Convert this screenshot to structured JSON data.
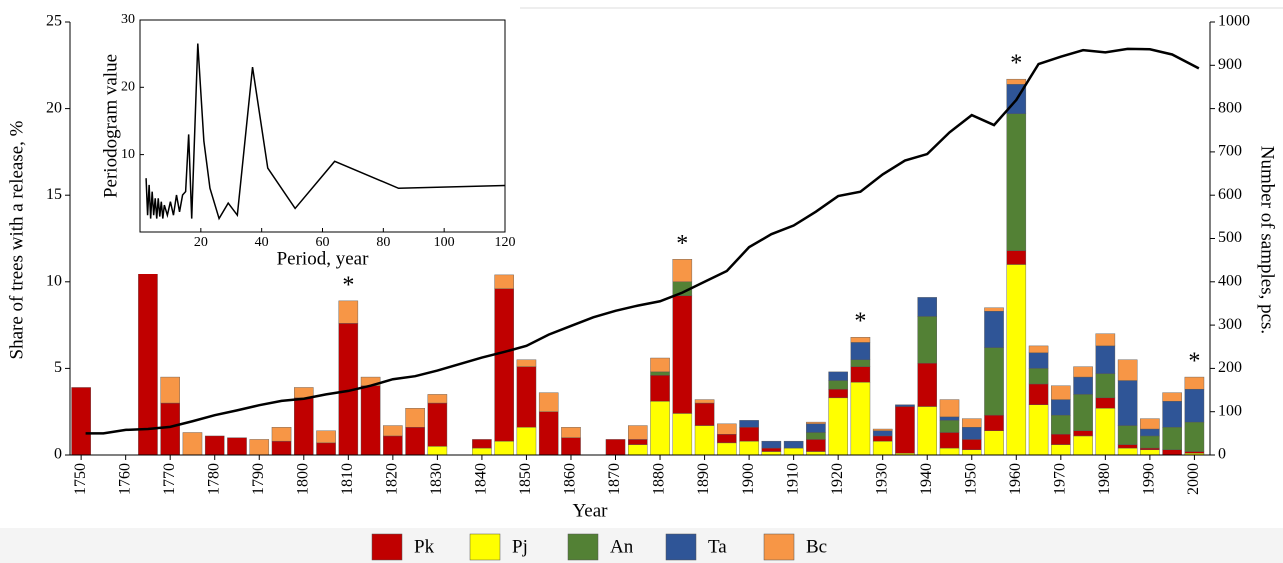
{
  "chart_data": [
    {
      "type": "bar",
      "stacked": true,
      "xlabel": "Year",
      "ylabel": "Share of trees with a release, %",
      "y2label": "Number of samples, pcs.",
      "x": [
        1750,
        1755,
        1760,
        1765,
        1770,
        1775,
        1780,
        1785,
        1790,
        1795,
        1800,
        1805,
        1810,
        1815,
        1820,
        1825,
        1830,
        1835,
        1840,
        1845,
        1850,
        1855,
        1860,
        1865,
        1870,
        1875,
        1880,
        1885,
        1890,
        1895,
        1900,
        1905,
        1910,
        1915,
        1920,
        1925,
        1930,
        1935,
        1940,
        1945,
        1950,
        1955,
        1960,
        1965,
        1970,
        1975,
        1980,
        1985,
        1990,
        1995,
        2000
      ],
      "xlim": [
        1747.5,
        2003.5
      ],
      "xticks": [
        1750,
        1760,
        1770,
        1780,
        1790,
        1800,
        1810,
        1820,
        1830,
        1840,
        1850,
        1860,
        1870,
        1880,
        1890,
        1900,
        1910,
        1920,
        1930,
        1940,
        1950,
        1960,
        1970,
        1980,
        1990,
        2000
      ],
      "ylim": [
        0,
        25
      ],
      "yticks": [
        0,
        5,
        10,
        15,
        20,
        25
      ],
      "y2lim": [
        0,
        1000
      ],
      "y2ticks": [
        0,
        100,
        200,
        300,
        400,
        500,
        600,
        700,
        800,
        900,
        1000
      ],
      "legend": "bottom",
      "series": [
        {
          "name": "Pk",
          "color": "#c00000",
          "values": [
            3.9,
            0,
            0,
            11.3,
            3.0,
            0,
            1.1,
            1.0,
            0,
            0.8,
            3.3,
            0.7,
            7.6,
            4.0,
            1.1,
            1.6,
            2.5,
            0,
            0.5,
            8.8,
            3.5,
            2.5,
            1.0,
            0,
            0.9,
            0.3,
            1.5,
            6.8,
            1.3,
            0.5,
            0.8,
            0.2,
            0,
            0.7,
            0.5,
            0.9,
            0.3,
            2.7,
            2.5,
            0.9,
            0.6,
            0.9,
            0.8,
            1.2,
            0.6,
            0.3,
            0.6,
            0.2,
            0.1,
            0.3,
            0.1
          ]
        },
        {
          "name": "Pj",
          "color": "#ffff00",
          "values": [
            0,
            0,
            0,
            0,
            0,
            0,
            0,
            0,
            0,
            0,
            0,
            0,
            0,
            0,
            0,
            0,
            0.5,
            0,
            0.4,
            0.8,
            1.6,
            0,
            0,
            0,
            0,
            0.6,
            3.1,
            2.4,
            1.7,
            0.7,
            0.8,
            0.2,
            0.4,
            0.2,
            3.3,
            4.2,
            0.8,
            0.1,
            2.8,
            0.4,
            0.3,
            1.4,
            11.0,
            2.9,
            0.6,
            1.1,
            2.7,
            0.4,
            0.3,
            0,
            0.1
          ]
        },
        {
          "name": "An",
          "color": "#538135",
          "values": [
            0,
            0,
            0,
            0,
            0,
            0,
            0,
            0,
            0,
            0,
            0,
            0,
            0,
            0,
            0,
            0,
            0,
            0,
            0,
            0,
            0,
            0,
            0,
            0,
            0,
            0,
            0.2,
            0.8,
            0,
            0,
            0,
            0,
            0,
            0.4,
            0.5,
            0.4,
            0,
            0,
            2.7,
            0.7,
            0,
            3.9,
            7.9,
            0.9,
            1.1,
            2.1,
            1.4,
            1.1,
            0.7,
            1.3,
            1.7
          ]
        },
        {
          "name": "Ta",
          "color": "#2f5597",
          "values": [
            0,
            0,
            0,
            0,
            0,
            0,
            0,
            0,
            0,
            0,
            0,
            0,
            0,
            0,
            0,
            0,
            0,
            0,
            0,
            0,
            0,
            0,
            0,
            0,
            0,
            0,
            0,
            0,
            0,
            0,
            0.4,
            0.4,
            0.4,
            0.5,
            0.5,
            1.0,
            0.3,
            0.1,
            1.1,
            0.2,
            0.7,
            2.1,
            1.7,
            0.9,
            0.9,
            1.0,
            1.6,
            2.6,
            0.4,
            1.5,
            1.9
          ]
        },
        {
          "name": "Bc",
          "color": "#f79646",
          "values": [
            0,
            0,
            0,
            0,
            1.5,
            1.3,
            0,
            0,
            0.9,
            0.8,
            0.6,
            0.7,
            1.3,
            0.5,
            0.6,
            1.1,
            0.5,
            0,
            0,
            0.8,
            0.4,
            1.1,
            0.6,
            0,
            0,
            0.8,
            0.8,
            1.3,
            0.2,
            0.6,
            0,
            0,
            0,
            0.1,
            0,
            0.3,
            0.1,
            0,
            0,
            1.0,
            0.5,
            0.2,
            0.3,
            0.4,
            0.8,
            0.6,
            0.7,
            1.2,
            0.6,
            0.5,
            0.7
          ]
        }
      ],
      "line": {
        "axis": "y2",
        "color": "#000000",
        "x": [
          1751,
          1755,
          1760,
          1765,
          1770,
          1775,
          1780,
          1785,
          1790,
          1795,
          1800,
          1805,
          1810,
          1815,
          1820,
          1825,
          1830,
          1835,
          1840,
          1845,
          1850,
          1855,
          1860,
          1865,
          1870,
          1875,
          1880,
          1885,
          1890,
          1895,
          1900,
          1905,
          1910,
          1915,
          1920,
          1925,
          1930,
          1935,
          1940,
          1945,
          1950,
          1955,
          1960,
          1965,
          1970,
          1975,
          1980,
          1985,
          1990,
          1995,
          2001
        ],
        "values": [
          50,
          50,
          58,
          60,
          65,
          78,
          92,
          103,
          115,
          125,
          130,
          140,
          148,
          160,
          175,
          182,
          195,
          210,
          225,
          238,
          252,
          278,
          298,
          318,
          333,
          345,
          355,
          375,
          400,
          425,
          480,
          510,
          530,
          562,
          598,
          608,
          648,
          680,
          695,
          745,
          785,
          762,
          820,
          903,
          920,
          935,
          930,
          938,
          937,
          925,
          893
        ]
      },
      "annotations": [
        {
          "text": "*",
          "x": 1810
        },
        {
          "text": "*",
          "x": 1845
        },
        {
          "text": "*",
          "x": 1885
        },
        {
          "text": "*",
          "x": 1925
        },
        {
          "text": "*",
          "x": 1960
        },
        {
          "text": "*",
          "x": 2000
        }
      ]
    },
    {
      "type": "line",
      "xlabel": "Period, year",
      "ylabel": "Periodogram value",
      "x": [
        2,
        2.5,
        3,
        3.5,
        4,
        4.5,
        5,
        5.5,
        6,
        6.5,
        7,
        7.5,
        8,
        9,
        10,
        11,
        12,
        13,
        14,
        15,
        16,
        17,
        19,
        21,
        23,
        26,
        29,
        32,
        37,
        42,
        51,
        64,
        85,
        120
      ],
      "values": [
        6.5,
        1,
        5.5,
        0.5,
        4.5,
        1,
        3.5,
        0.5,
        3.5,
        0.8,
        3,
        0.5,
        2.5,
        1,
        3,
        1,
        4,
        1.5,
        4,
        4.5,
        13,
        0.5,
        26.5,
        12,
        5,
        0.5,
        2.8,
        1,
        23,
        8,
        2,
        9,
        5,
        5.4
      ],
      "color": "#000000",
      "xlim": [
        0,
        120
      ],
      "xticks": [
        20,
        40,
        60,
        80,
        100,
        120
      ],
      "ylim": [
        -1.5,
        30
      ],
      "yticks": [
        10,
        20,
        30
      ]
    }
  ]
}
